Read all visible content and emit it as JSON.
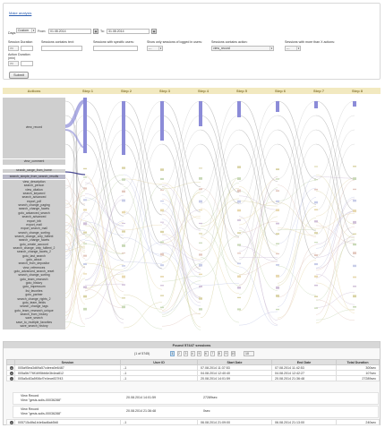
{
  "filters": {
    "link": "Make analysis",
    "days_label": "Days:",
    "days_value": "Custom",
    "from_label": "From:",
    "from_value": "01.08.2014",
    "to_label": "To:",
    "to_value": "31.08.2014",
    "session_duration_label": "Session Duration",
    "session_duration_op": ">=",
    "session_duration_value": "",
    "contains_text_label": "Sessions contains text:",
    "contains_text_value": "",
    "specific_users_label": "Sessions with specific users:",
    "specific_users_value": "",
    "logged_users_label": "Show only sessions of logged in users:",
    "logged_users_value": "---",
    "contains_action_label": "Sessions contains action:",
    "contains_action_value": "view_record",
    "more_actions_label": "Sessions with more than X actions:",
    "more_actions_value": "---",
    "action_duration_label": "Action Duration",
    "action_duration_sub": "(min)",
    "action_duration_op": ">=",
    "action_duration_value": "",
    "submit_label": "Submit"
  },
  "flow": {
    "header": {
      "actions": "Actions",
      "steps": [
        "Step 1",
        "Step 2",
        "Step 3",
        "Step 4",
        "Step 5",
        "Step 6",
        "Step 7",
        "Step 8"
      ]
    },
    "big_actions": [
      "view_record",
      "view_comment",
      "search_range_from_home",
      "search_simple_from_search_results"
    ],
    "actions": [
      "view_description",
      "search_person",
      "view_citation",
      "search_keyword",
      "search_advanced",
      "export_pdf",
      "search_change_paging",
      "search_change_facets",
      "goto_advanced_search",
      "search_advanced",
      "export_bib",
      "export_mail",
      "export_search_mail",
      "search_change_sorting",
      "search_change_only_fulltext",
      "search_change_facets",
      "goto_create_account",
      "search_change_only_fulltext_2",
      "search_change_facets_2",
      "goto_last_search",
      "goto_about",
      "search_from_depositor",
      "view_references",
      "goto_advanced_search_reset",
      "search_change_sorting",
      "goto_team_research",
      "goto_history",
      "goto_impressum",
      "list_favorites",
      "goto_partner",
      "search_change_rights_2",
      "goto_team_fields",
      "search_change_tags",
      "goto_team_research_unique",
      "search_from_history",
      "save_search",
      "save_to_multiple_favorites",
      "save_search_history"
    ],
    "accent": "#8c8cd8"
  },
  "results": {
    "title": "Found 57447 sessions",
    "page_info": "(1 of 5745)",
    "pages": [
      "1",
      "2",
      "3",
      "4",
      "5",
      "6",
      "7",
      "8",
      "9",
      "10"
    ],
    "per_page": "10",
    "columns": [
      "Session",
      "User ID",
      "Start Date",
      "End Date",
      "Total Duration"
    ],
    "rows": [
      {
        "session": "005a95ea3d69a57cdeea0e6487",
        "user": "-1",
        "start": "07.08.2014 11:37:53",
        "end": "07.08.2014 11:42:53",
        "duration": "300sec"
      },
      {
        "session": "005a5b776f1695bb6e3b4ea812",
        "user": "-1",
        "start": "04.08.2014 12:40:40",
        "end": "04.08.2014 12:42:27",
        "duration": "107sec"
      },
      {
        "session": "005a5c83a5f08cf7e4ece837f43",
        "user": "-1",
        "start": "20.08.2014 14:01:59",
        "end": "20.08.2014 21:36:48",
        "duration": "27289sec"
      }
    ],
    "detail": [
      {
        "line1": "View Record",
        "line2": "View \"gesis-solis-00036288\"",
        "date": "20.08.2014 14:01:59",
        "dur": "27289sec"
      },
      {
        "line1": "View Record",
        "line2": "View \"gesis-solis-00036288\"",
        "date": "20.08.2014 21:36:48",
        "dur": "0sec"
      }
    ],
    "last_row": {
      "session": "005715c8fa1b4e6ad6ab5b8",
      "user": "-1",
      "start": "06.08.2014 21:09:00",
      "end": "06.08.2014 21:13:00",
      "duration": "240sec"
    }
  }
}
